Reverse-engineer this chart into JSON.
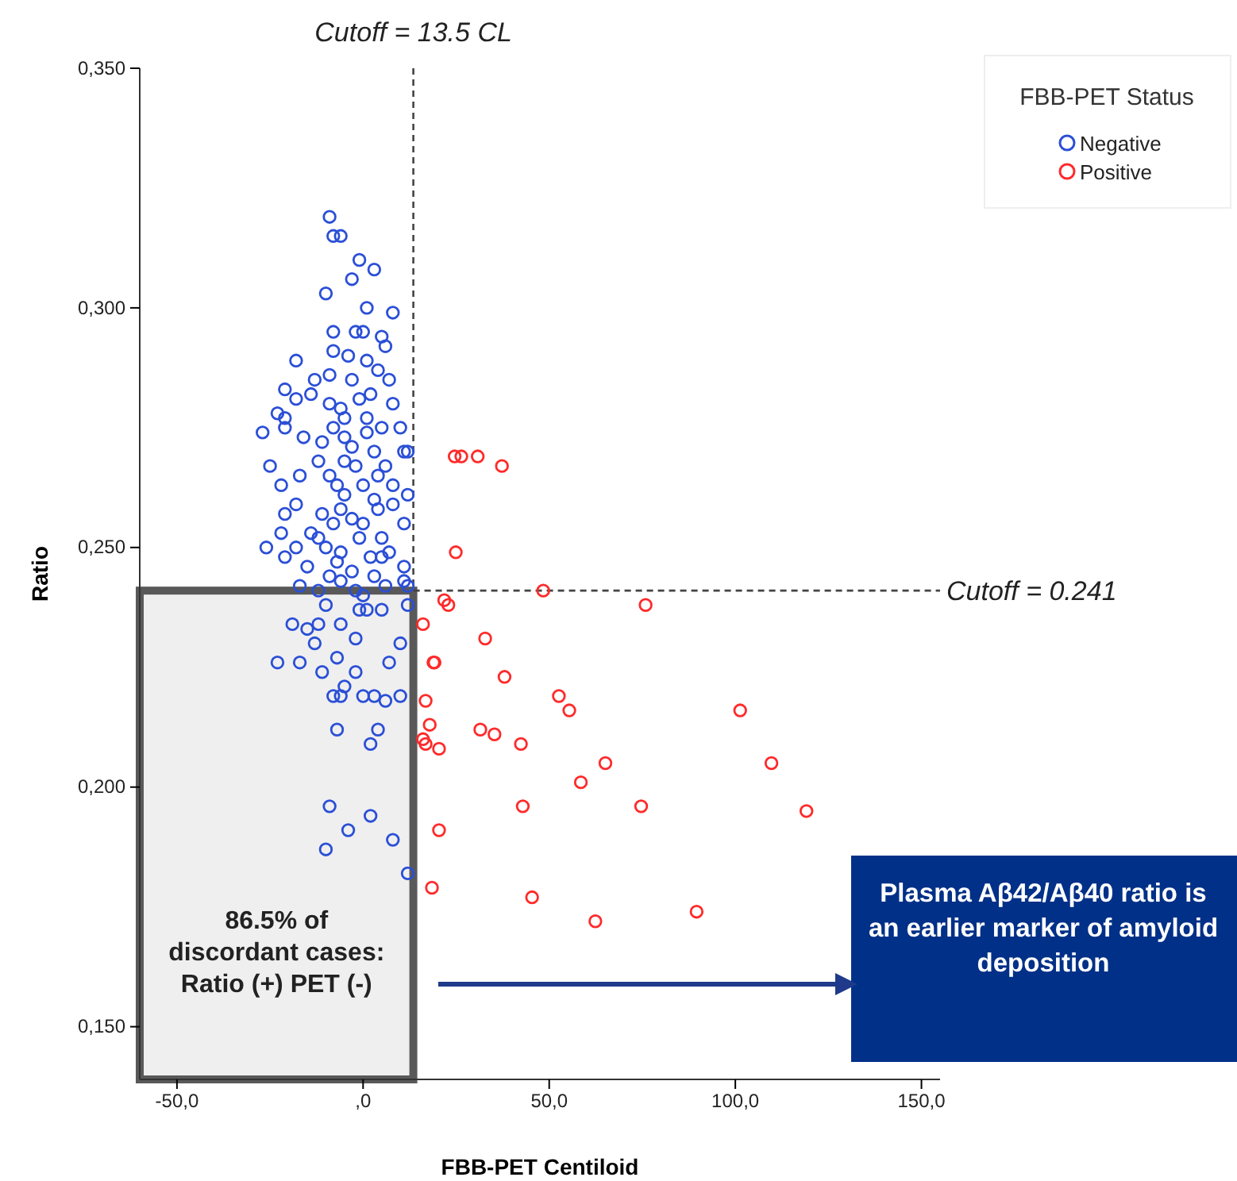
{
  "chart_data": {
    "type": "scatter",
    "xlabel": "FBB-PET Centiloid",
    "ylabel": "Ratio",
    "legend_title": "FBB-PET Status",
    "legend": "top right",
    "marker": "circle",
    "grid": false,
    "xlim": [
      -60,
      155
    ],
    "ylim": [
      0.139,
      0.35
    ],
    "xticks": [
      {
        "value": -50,
        "label": "-50,0"
      },
      {
        "value": 0,
        "label": ",0"
      },
      {
        "value": 50,
        "label": "50,0"
      },
      {
        "value": 100,
        "label": "100,0"
      },
      {
        "value": 150,
        "label": "150,0"
      }
    ],
    "yticks": [
      {
        "value": 0.15,
        "label": "0,150"
      },
      {
        "value": 0.2,
        "label": "0,200"
      },
      {
        "value": 0.25,
        "label": "0,250"
      },
      {
        "value": 0.3,
        "label": "0,300"
      },
      {
        "value": 0.35,
        "label": "0,350"
      }
    ],
    "ref_lines": [
      {
        "axis": "x",
        "value": 13.5,
        "label": "Cutoff = 13.5 CL",
        "line_style": "dashed"
      },
      {
        "axis": "y",
        "value": 0.241,
        "label": "Cutoff = 0.241",
        "line_style": "dashed"
      }
    ],
    "annotations": [
      "86.5% of discordant cases: Ratio (+) PET (-)",
      "Plasma Aβ42/Aβ40 ratio is an earlier marker of amyloid deposition"
    ],
    "series": [
      {
        "name": "Negative",
        "color": "#2b4fd6",
        "x": [
          -9,
          -8,
          -6,
          -1,
          3,
          -3,
          -10,
          1,
          8,
          -8,
          -2,
          0,
          5,
          6,
          -18,
          -8,
          -4,
          1,
          -9,
          7,
          2,
          -21,
          -9,
          1,
          -27,
          -14,
          -6,
          -5,
          -1,
          1,
          5,
          -23,
          -21,
          -16,
          -11,
          -5,
          -3,
          3,
          6,
          -12,
          11,
          4,
          0,
          -7,
          -22,
          -17,
          -25,
          -9,
          -18,
          -11,
          -5,
          4,
          8,
          12,
          -22,
          -14,
          -8,
          -1,
          5,
          11,
          -21,
          -10,
          -6,
          2,
          7,
          11,
          -21,
          -15,
          -9,
          -3,
          3,
          -17,
          -12,
          -6,
          -2,
          6,
          11,
          12,
          -10,
          0,
          5,
          -12,
          -6,
          1,
          12,
          -15,
          -7,
          -2,
          7,
          10,
          -19,
          -23,
          -11,
          -5,
          6,
          -6,
          10,
          -7,
          0,
          4,
          2,
          -9,
          -4,
          2,
          -10,
          8,
          12,
          -17,
          -26,
          8,
          12,
          10,
          4,
          -5,
          -13,
          -18,
          -21,
          -3,
          -8,
          -2,
          8,
          3,
          -6,
          -3,
          0,
          -12,
          -18,
          5,
          -7,
          -1,
          -13,
          -8,
          3,
          -2
        ],
        "values": [
          0.319,
          0.315,
          0.315,
          0.31,
          0.308,
          0.306,
          0.303,
          0.3,
          0.299,
          0.295,
          0.295,
          0.295,
          0.294,
          0.292,
          0.289,
          0.291,
          0.29,
          0.289,
          0.286,
          0.285,
          0.282,
          0.283,
          0.28,
          0.277,
          0.274,
          0.282,
          0.279,
          0.277,
          0.281,
          0.274,
          0.275,
          0.278,
          0.275,
          0.273,
          0.272,
          0.268,
          0.271,
          0.27,
          0.267,
          0.268,
          0.27,
          0.265,
          0.263,
          0.263,
          0.263,
          0.265,
          0.267,
          0.265,
          0.259,
          0.257,
          0.261,
          0.258,
          0.259,
          0.261,
          0.253,
          0.253,
          0.255,
          0.252,
          0.252,
          0.255,
          0.257,
          0.25,
          0.249,
          0.248,
          0.249,
          0.246,
          0.248,
          0.246,
          0.244,
          0.245,
          0.244,
          0.242,
          0.241,
          0.243,
          0.241,
          0.242,
          0.243,
          0.242,
          0.238,
          0.24,
          0.237,
          0.234,
          0.234,
          0.237,
          0.238,
          0.233,
          0.227,
          0.231,
          0.226,
          0.23,
          0.234,
          0.226,
          0.224,
          0.221,
          0.218,
          0.219,
          0.219,
          0.212,
          0.219,
          0.212,
          0.209,
          0.196,
          0.191,
          0.194,
          0.187,
          0.189,
          0.182,
          0.226,
          0.25,
          0.28,
          0.27,
          0.275,
          0.287,
          0.273,
          0.285,
          0.281,
          0.277,
          0.285,
          0.275,
          0.267,
          0.263,
          0.26,
          0.258,
          0.256,
          0.255,
          0.252,
          0.25,
          0.248,
          0.247,
          0.237,
          0.23,
          0.219,
          0.219,
          0.224
        ]
      },
      {
        "name": "Positive",
        "color": "#ff2a2a",
        "x": [
          24.6,
          26.4,
          30.8,
          37.3,
          24.9,
          48.4,
          75.9,
          21.8,
          22.9,
          16.1,
          32.8,
          18.9,
          19.2,
          38,
          16.8,
          52.6,
          55.4,
          101.3,
          17.9,
          16.1,
          16.8,
          20.4,
          31.5,
          35.3,
          42.4,
          65.1,
          109.7,
          58.5,
          42.9,
          74.7,
          119.1,
          20.4,
          18.5,
          45.4,
          62.4,
          89.6
        ],
        "values": [
          0.269,
          0.269,
          0.269,
          0.267,
          0.249,
          0.241,
          0.238,
          0.239,
          0.238,
          0.234,
          0.231,
          0.226,
          0.226,
          0.223,
          0.218,
          0.219,
          0.216,
          0.216,
          0.213,
          0.21,
          0.209,
          0.208,
          0.212,
          0.211,
          0.209,
          0.205,
          0.205,
          0.201,
          0.196,
          0.196,
          0.195,
          0.191,
          0.179,
          0.177,
          0.172,
          0.174
        ]
      }
    ]
  }
}
